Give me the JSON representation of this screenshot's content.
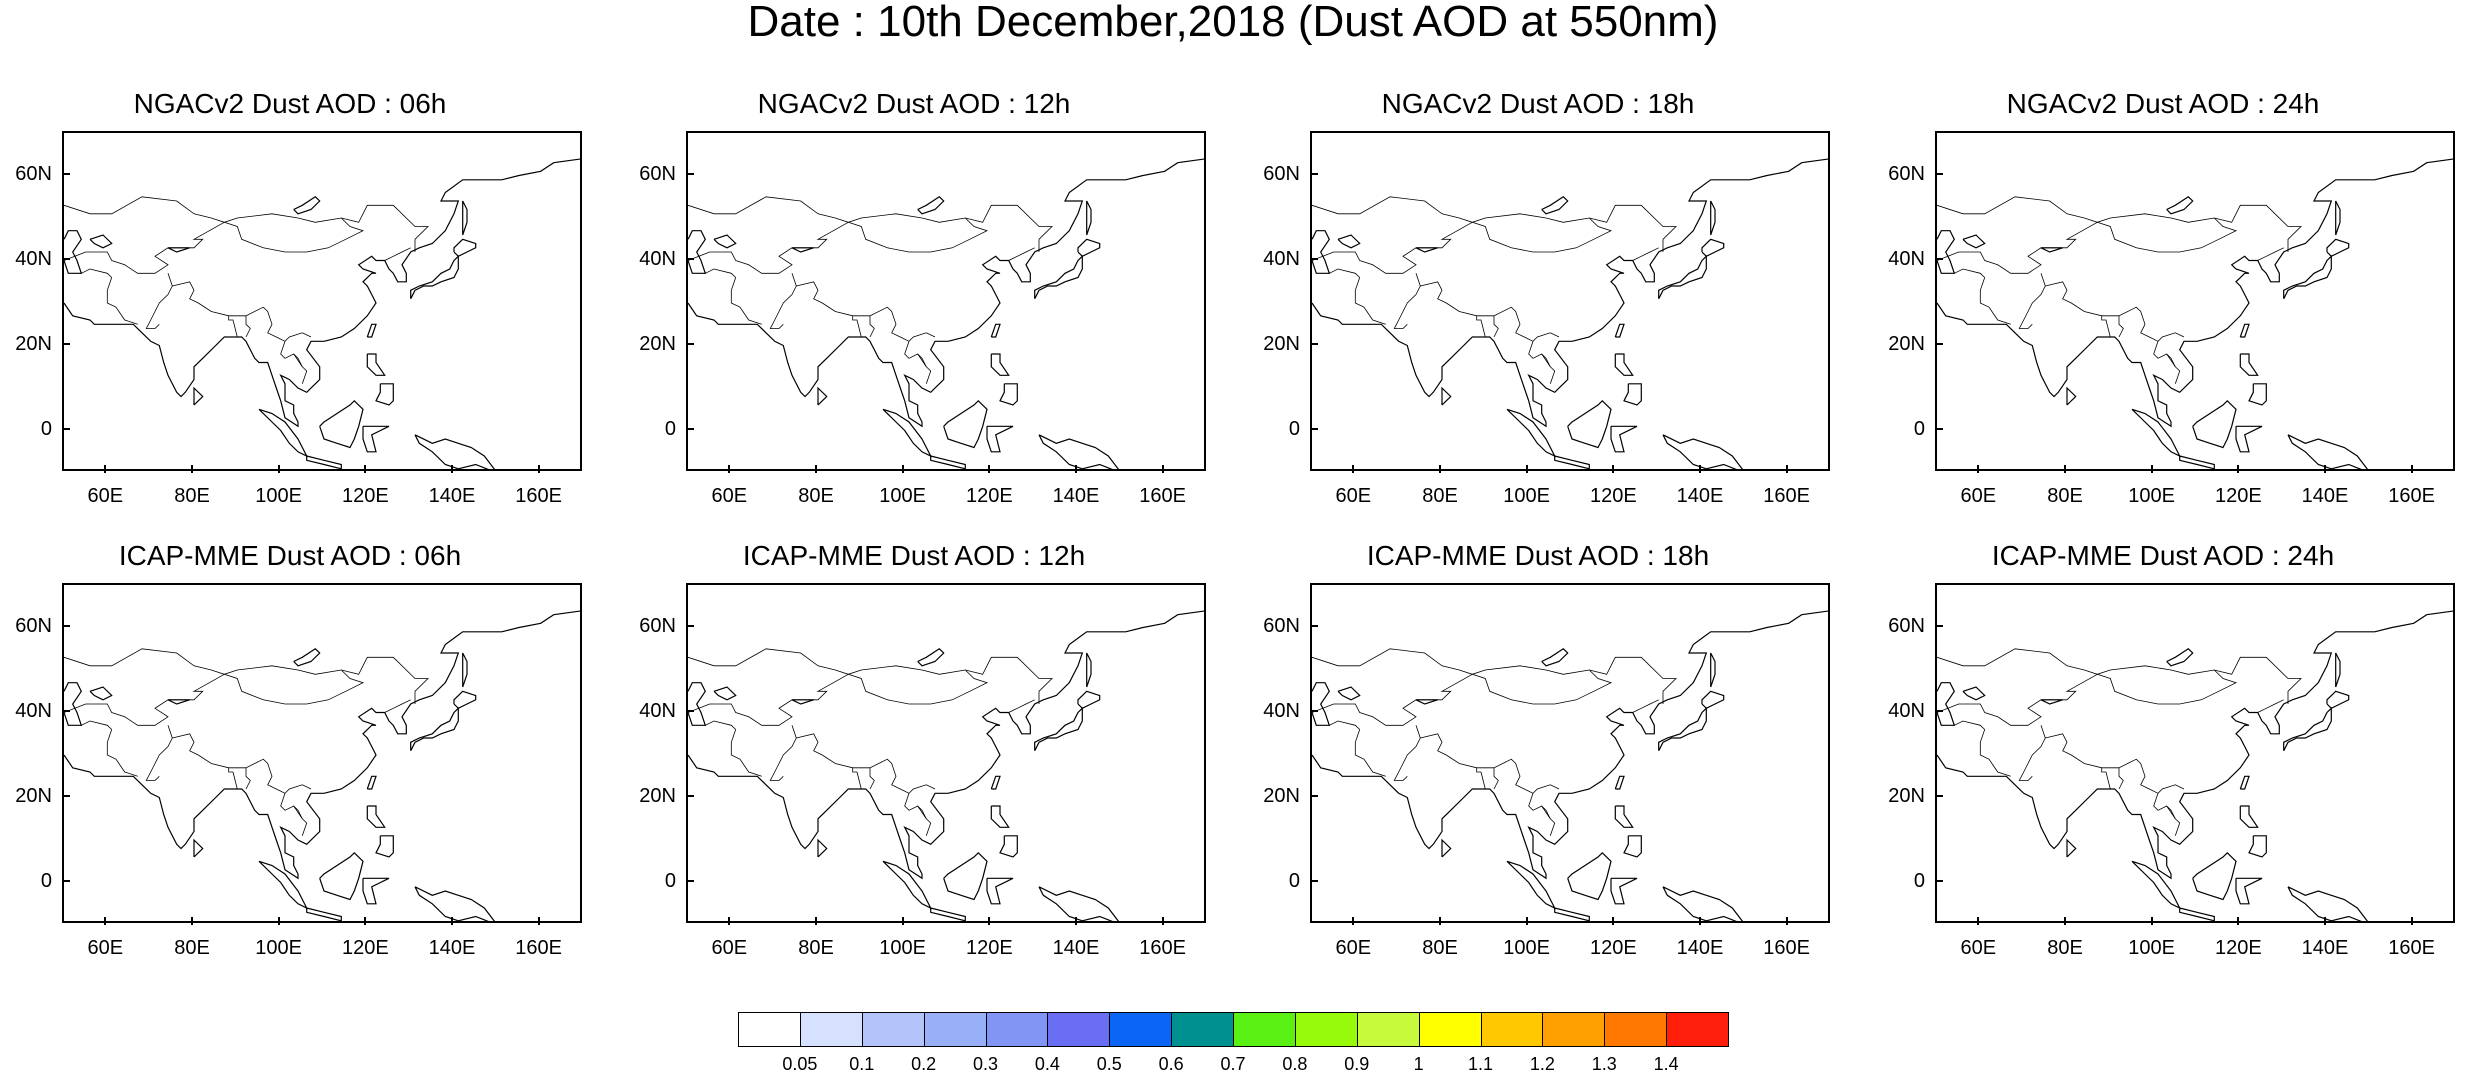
{
  "title": "Date : 10th December,2018 (Dust AOD at 550nm)",
  "map": {
    "lon_range": [
      50,
      170
    ],
    "lat_range": [
      -10,
      70
    ],
    "y_ticks": [
      "60N",
      "40N",
      "20N",
      "0"
    ],
    "y_tick_values": [
      60,
      40,
      20,
      0
    ],
    "x_ticks": [
      "60E",
      "80E",
      "100E",
      "120E",
      "140E",
      "160E"
    ],
    "x_tick_values": [
      60,
      80,
      100,
      120,
      140,
      160
    ],
    "coastline_color": "#000000"
  },
  "panels": [
    {
      "title": "NGACv2 Dust AOD : 06h",
      "model": "NGACv2",
      "hour": "06h"
    },
    {
      "title": "NGACv2 Dust AOD : 12h",
      "model": "NGACv2",
      "hour": "12h"
    },
    {
      "title": "NGACv2 Dust AOD : 18h",
      "model": "NGACv2",
      "hour": "18h"
    },
    {
      "title": "NGACv2 Dust AOD : 24h",
      "model": "NGACv2",
      "hour": "24h"
    },
    {
      "title": "ICAP-MME Dust AOD : 06h",
      "model": "ICAP-MME",
      "hour": "06h"
    },
    {
      "title": "ICAP-MME Dust AOD : 12h",
      "model": "ICAP-MME",
      "hour": "12h"
    },
    {
      "title": "ICAP-MME Dust AOD : 18h",
      "model": "ICAP-MME",
      "hour": "18h"
    },
    {
      "title": "ICAP-MME Dust AOD : 24h",
      "model": "ICAP-MME",
      "hour": "24h"
    }
  ],
  "colorbar": {
    "labels": [
      "0.05",
      "0.1",
      "0.2",
      "0.3",
      "0.4",
      "0.5",
      "0.6",
      "0.7",
      "0.8",
      "0.9",
      "1",
      "1.1",
      "1.2",
      "1.3",
      "1.4"
    ],
    "colors": [
      "#ffffff",
      "#d6e0ff",
      "#b4c4fa",
      "#98b0f8",
      "#8196f4",
      "#6a6ef2",
      "#0a64f4",
      "#009090",
      "#5af014",
      "#96fa0a",
      "#c8fa3c",
      "#ffff00",
      "#ffc800",
      "#ffa000",
      "#ff7800",
      "#ff1e0a"
    ]
  }
}
